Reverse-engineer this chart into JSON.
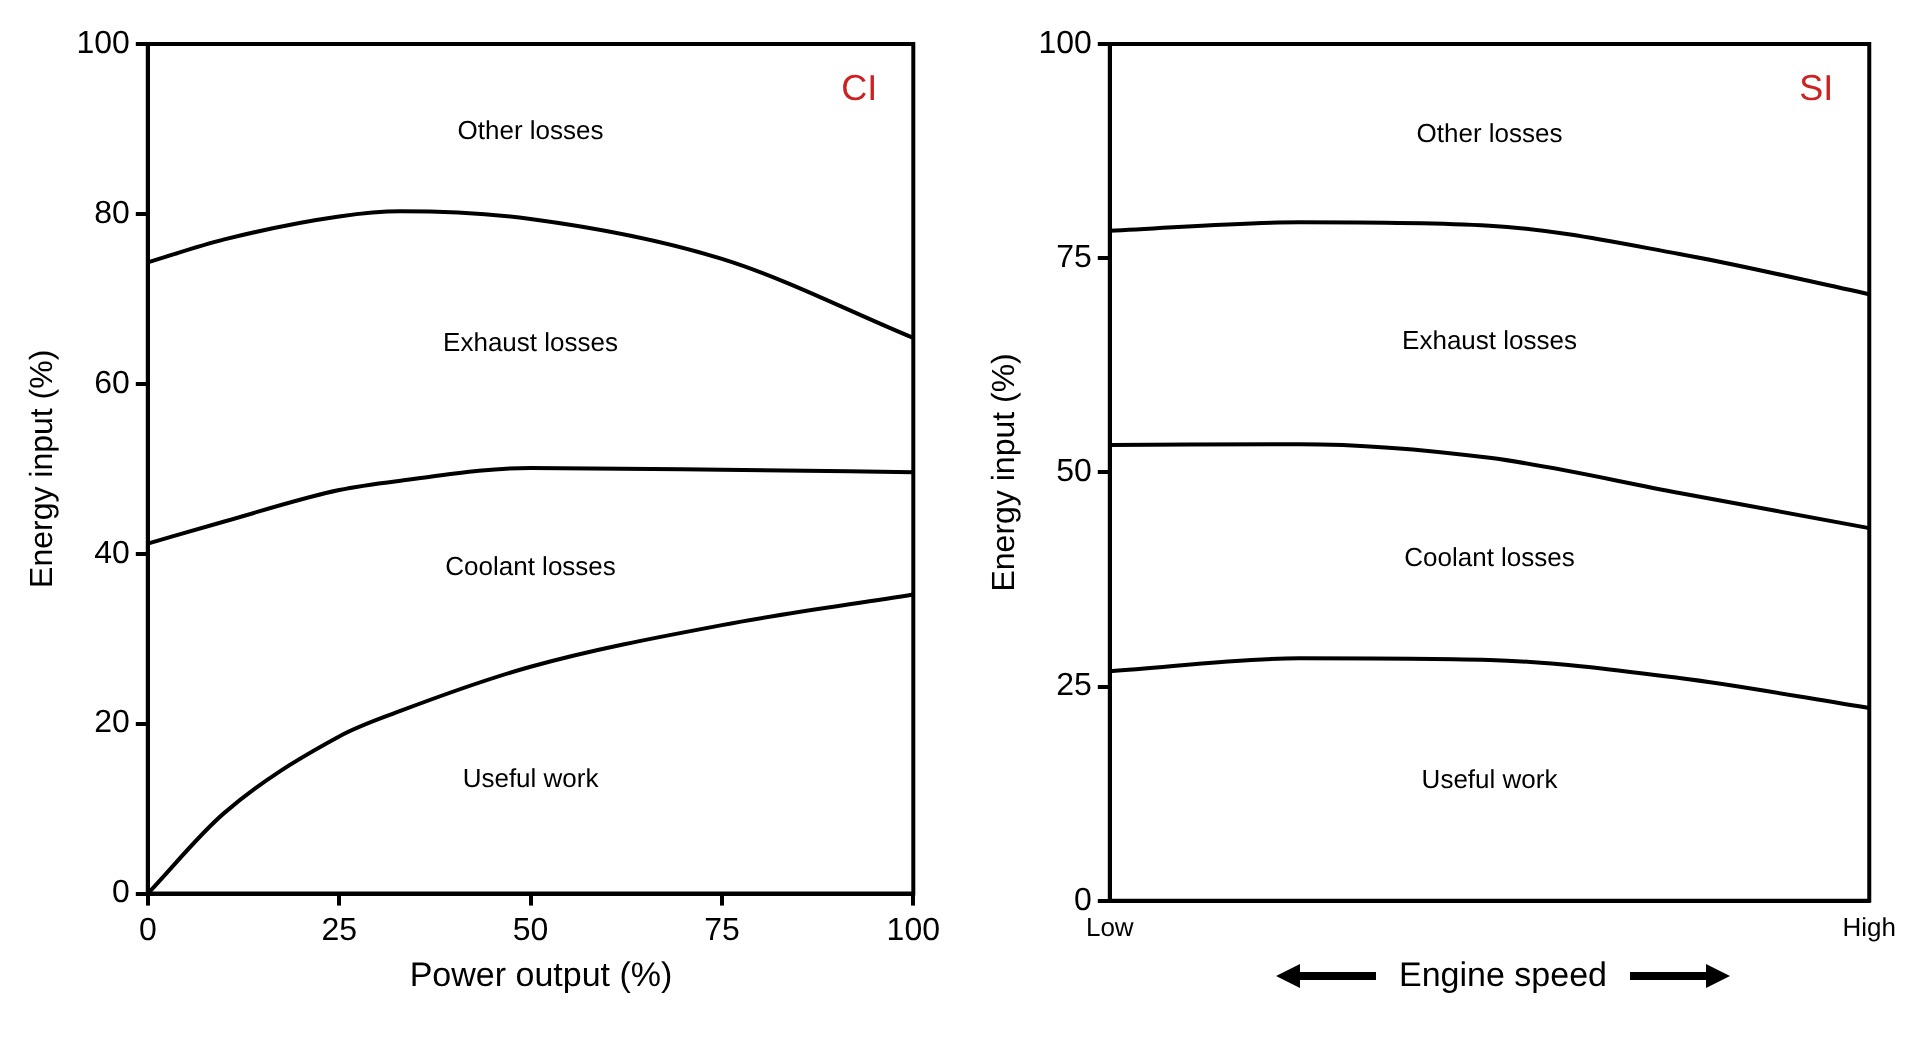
{
  "chart_data": [
    {
      "type": "line",
      "xlabel": "Power output (%)",
      "ylabel": "Energy input (%)",
      "x": [
        0,
        10,
        25,
        33,
        50,
        75,
        100
      ],
      "xlim": [
        0,
        100
      ],
      "xticks": [
        0,
        25,
        50,
        75,
        100
      ],
      "ylim": [
        0,
        100
      ],
      "yticks": [
        0,
        20,
        40,
        60,
        80,
        100
      ],
      "grid": false,
      "legend": false,
      "marker": "none",
      "series": [
        {
          "color": "#000000",
          "values": [
            74.3,
            77,
            79.7,
            80.3,
            79.4,
            74.7,
            65.4
          ]
        },
        {
          "color": "#000000",
          "values": [
            41.2,
            43.8,
            47.5,
            48.6,
            50.1,
            49.9,
            49.6
          ]
        },
        {
          "color": "#000000",
          "values": [
            0,
            9.5,
            18.5,
            21.5,
            26.7,
            31.6,
            35.2
          ]
        }
      ],
      "annotations": [
        "CI",
        "Other losses",
        "Exhaust losses",
        "Coolant losses",
        "Useful work"
      ]
    },
    {
      "type": "line",
      "xlabel": "Engine speed",
      "ylabel": "Energy input (%)",
      "categories": [
        "Low",
        null,
        null,
        null,
        "High"
      ],
      "ylim": [
        0,
        100
      ],
      "yticks": [
        0,
        25,
        50,
        75,
        100
      ],
      "grid": false,
      "legend": false,
      "marker": "none",
      "series": [
        {
          "color": "#000000",
          "values": [
            78.2,
            79.2,
            78.8,
            75.5,
            70.8
          ]
        },
        {
          "color": "#000000",
          "values": [
            53.2,
            53.3,
            51.7,
            47.6,
            43.5
          ]
        },
        {
          "color": "#000000",
          "values": [
            26.8,
            28.3,
            28.1,
            26.0,
            22.5
          ]
        }
      ],
      "annotations": [
        "SI",
        "Other losses",
        "Exhaust losses",
        "Coolant losses",
        "Useful work"
      ]
    }
  ]
}
